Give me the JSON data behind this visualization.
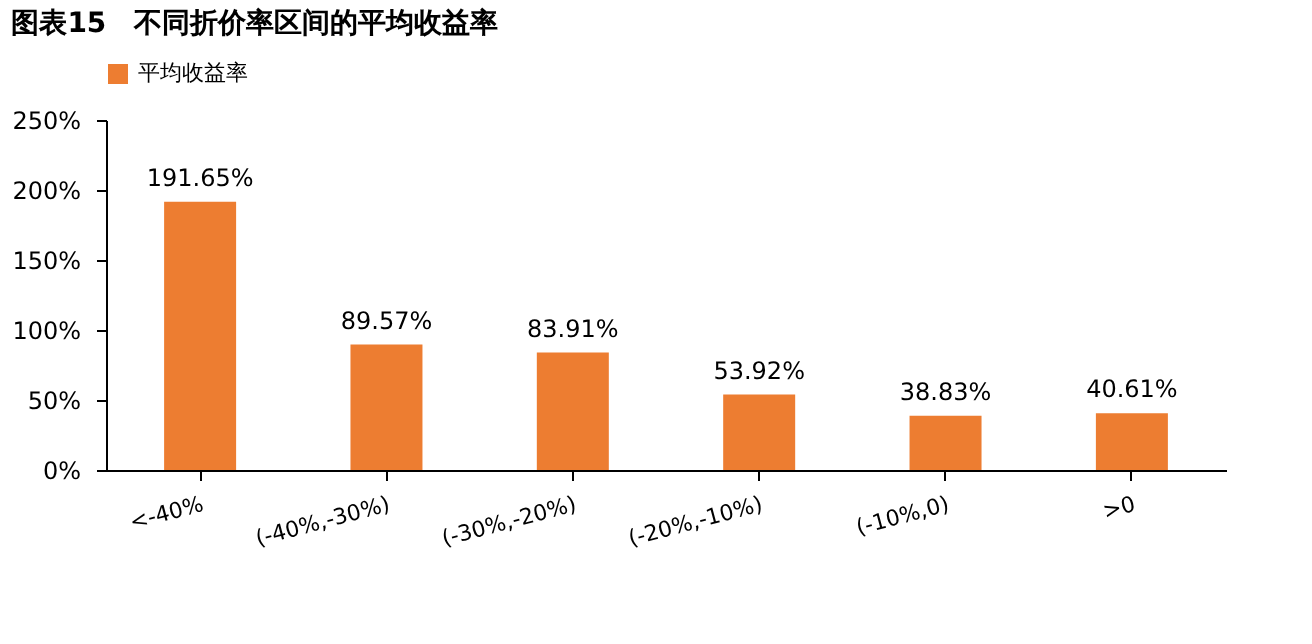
{
  "chart_data": {
    "type": "bar",
    "title": "图表15　不同折价率区间的平均收益率",
    "categories": [
      "<-40%",
      "(-40%,-30%)",
      "(-30%,-20%)",
      "(-20%,-10%)",
      "(-10%,0)",
      ">0"
    ],
    "series": [
      {
        "name": "平均收益率",
        "color": "#ed7d31",
        "values": [
          191.65,
          89.57,
          83.91,
          53.92,
          38.83,
          40.61
        ],
        "value_labels": [
          "191.65%",
          "89.57%",
          "83.91%",
          "53.92%",
          "38.83%",
          "40.61%"
        ]
      }
    ],
    "ylim": [
      0,
      250
    ],
    "yticks": [
      {
        "value": 0,
        "label": "0%"
      },
      {
        "value": 50,
        "label": "50%"
      },
      {
        "value": 100,
        "label": "100%"
      },
      {
        "value": 150,
        "label": "150%"
      },
      {
        "value": 200,
        "label": "200%"
      },
      {
        "value": 250,
        "label": "250%"
      }
    ],
    "grid": false,
    "legend": "top"
  }
}
